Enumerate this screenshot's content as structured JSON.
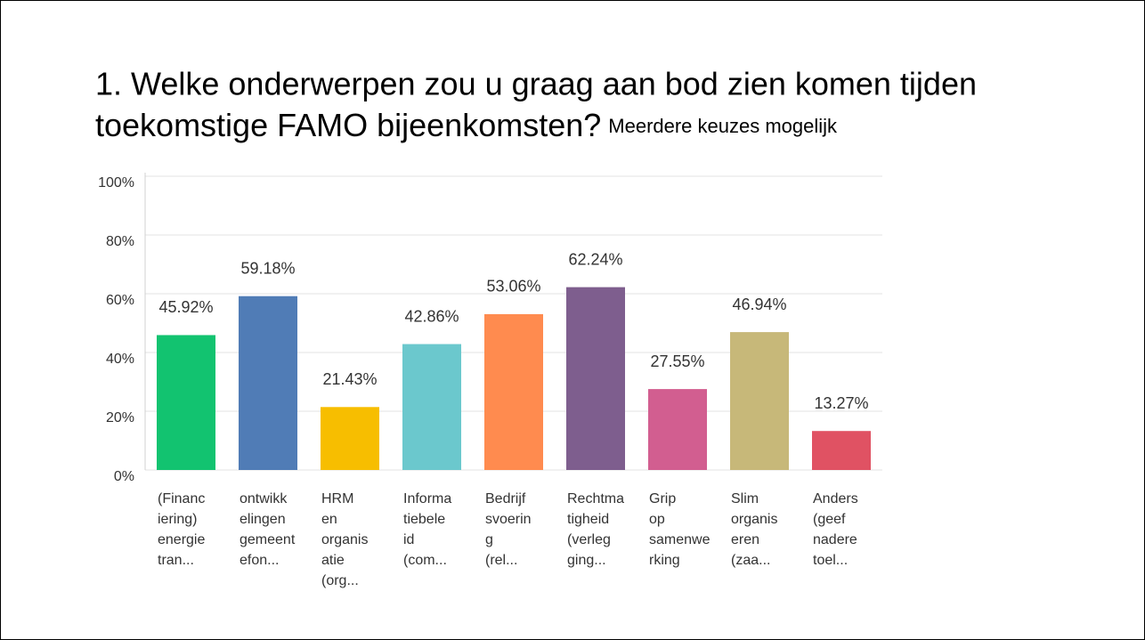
{
  "chart_data": {
    "type": "bar",
    "title": [
      "1. Welke onderwerpen zou u graag aan bod zien komen tijden",
      "toekomstige FAMO bijeenkomsten?"
    ],
    "subtitle": "Meerdere keuzes mogelijk",
    "categories": [
      [
        "(Financ",
        "iering)",
        "energie",
        "tran..."
      ],
      [
        "ontwikk",
        "elingen",
        "gemeent",
        "efon..."
      ],
      [
        "HRM",
        "en",
        "organis",
        "atie",
        "(org..."
      ],
      [
        "Informa",
        "tiebele",
        "id",
        "(com..."
      ],
      [
        "Bedrijf",
        "svoerin",
        "g",
        "(rel..."
      ],
      [
        "Rechtma",
        "tigheid",
        "(verleg",
        "ging..."
      ],
      [
        "Grip",
        "op",
        "samenwe",
        "rking"
      ],
      [
        "Slim",
        "organis",
        "eren",
        "(zaa..."
      ],
      [
        "Anders",
        "(geef",
        "nadere",
        "toel..."
      ]
    ],
    "values": [
      45.92,
      59.18,
      21.43,
      42.86,
      53.06,
      62.24,
      27.55,
      46.94,
      13.27
    ],
    "value_labels": [
      "45.92%",
      "59.18%",
      "21.43%",
      "42.86%",
      "53.06%",
      "62.24%",
      "27.55%",
      "46.94%",
      "13.27%"
    ],
    "colors": [
      "#12c370",
      "#507cb6",
      "#f7be00",
      "#6bc8cd",
      "#ff8b4f",
      "#7e5e8e",
      "#d25e90",
      "#c7b879",
      "#e05263"
    ],
    "ylim": [
      0,
      100
    ],
    "yticks": [
      {
        "value": 0,
        "label": "0%"
      },
      {
        "value": 20,
        "label": "20%"
      },
      {
        "value": 40,
        "label": "40%"
      },
      {
        "value": 60,
        "label": "60%"
      },
      {
        "value": 80,
        "label": "80%"
      },
      {
        "value": 100,
        "label": "100%"
      }
    ],
    "grid": true
  }
}
